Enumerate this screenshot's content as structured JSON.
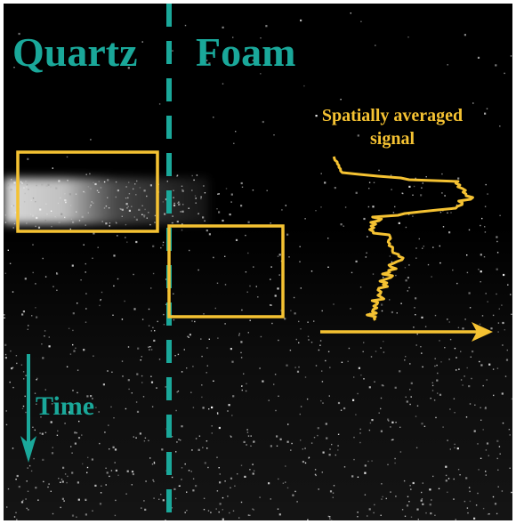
{
  "labels": {
    "quartz": "Quartz",
    "foam": "Foam",
    "time": "Time",
    "signal_line1": "Spatially averaged",
    "signal_line2": "signal"
  },
  "colors": {
    "teal": "#1aa89a",
    "yellow": "#f5c232",
    "background": "#000000"
  }
}
